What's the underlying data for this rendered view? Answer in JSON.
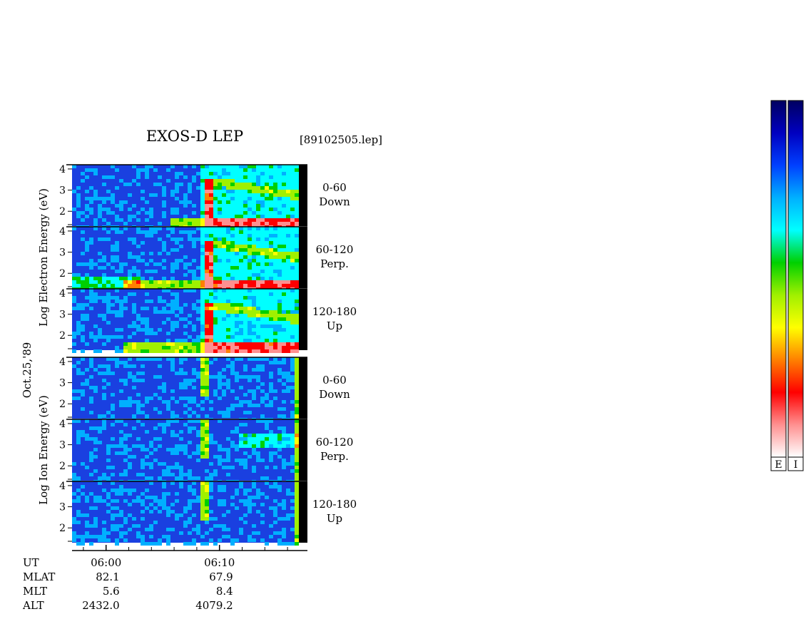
{
  "chart_data": {
    "type": "heatmap",
    "title": "EXOS-D LEP",
    "file_label": "[89102505.lep]",
    "date_label": "Oct.25,'89",
    "energy_ticks": [
      "2",
      "3",
      "4"
    ],
    "groups": [
      {
        "name": "electron",
        "ylabel": "Log Electron Energy (eV)",
        "panels": [
          {
            "label_range": "0-60",
            "label_dir": "Down"
          },
          {
            "label_range": "60-120",
            "label_dir": "Perp."
          },
          {
            "label_range": "120-180",
            "label_dir": "Up"
          }
        ]
      },
      {
        "name": "ion",
        "ylabel": "Log Ion Energy (eV)",
        "panels": [
          {
            "label_range": "0-60",
            "label_dir": "Down"
          },
          {
            "label_range": "60-120",
            "label_dir": "Perp."
          },
          {
            "label_range": "120-180",
            "label_dir": "Up"
          }
        ]
      }
    ],
    "xaxis": {
      "start_min": 357,
      "end_min": 377,
      "major_ticks": [
        {
          "min": 360,
          "label": "06:00"
        },
        {
          "min": 370,
          "label": "06:10"
        }
      ],
      "minor_tick_interval_min": 2
    },
    "orbit_rows": [
      {
        "label": "UT",
        "values": [
          "06:00",
          "06:10"
        ]
      },
      {
        "label": "MLAT",
        "values": [
          "82.1",
          "67.9"
        ]
      },
      {
        "label": "MLT",
        "values": [
          "5.6",
          "8.4"
        ]
      },
      {
        "label": "ALT",
        "values": [
          "2432.0",
          "4079.2"
        ]
      }
    ],
    "colorbars": [
      {
        "label": "E"
      },
      {
        "label": "I"
      }
    ],
    "colormap": [
      "#ffffff",
      "#ff9090",
      "#ff0000",
      "#ff8000",
      "#ffff00",
      "#a0f000",
      "#00d000",
      "#00ffff",
      "#00b0ff",
      "#0040ff",
      "#0000c0",
      "#000060"
    ]
  }
}
